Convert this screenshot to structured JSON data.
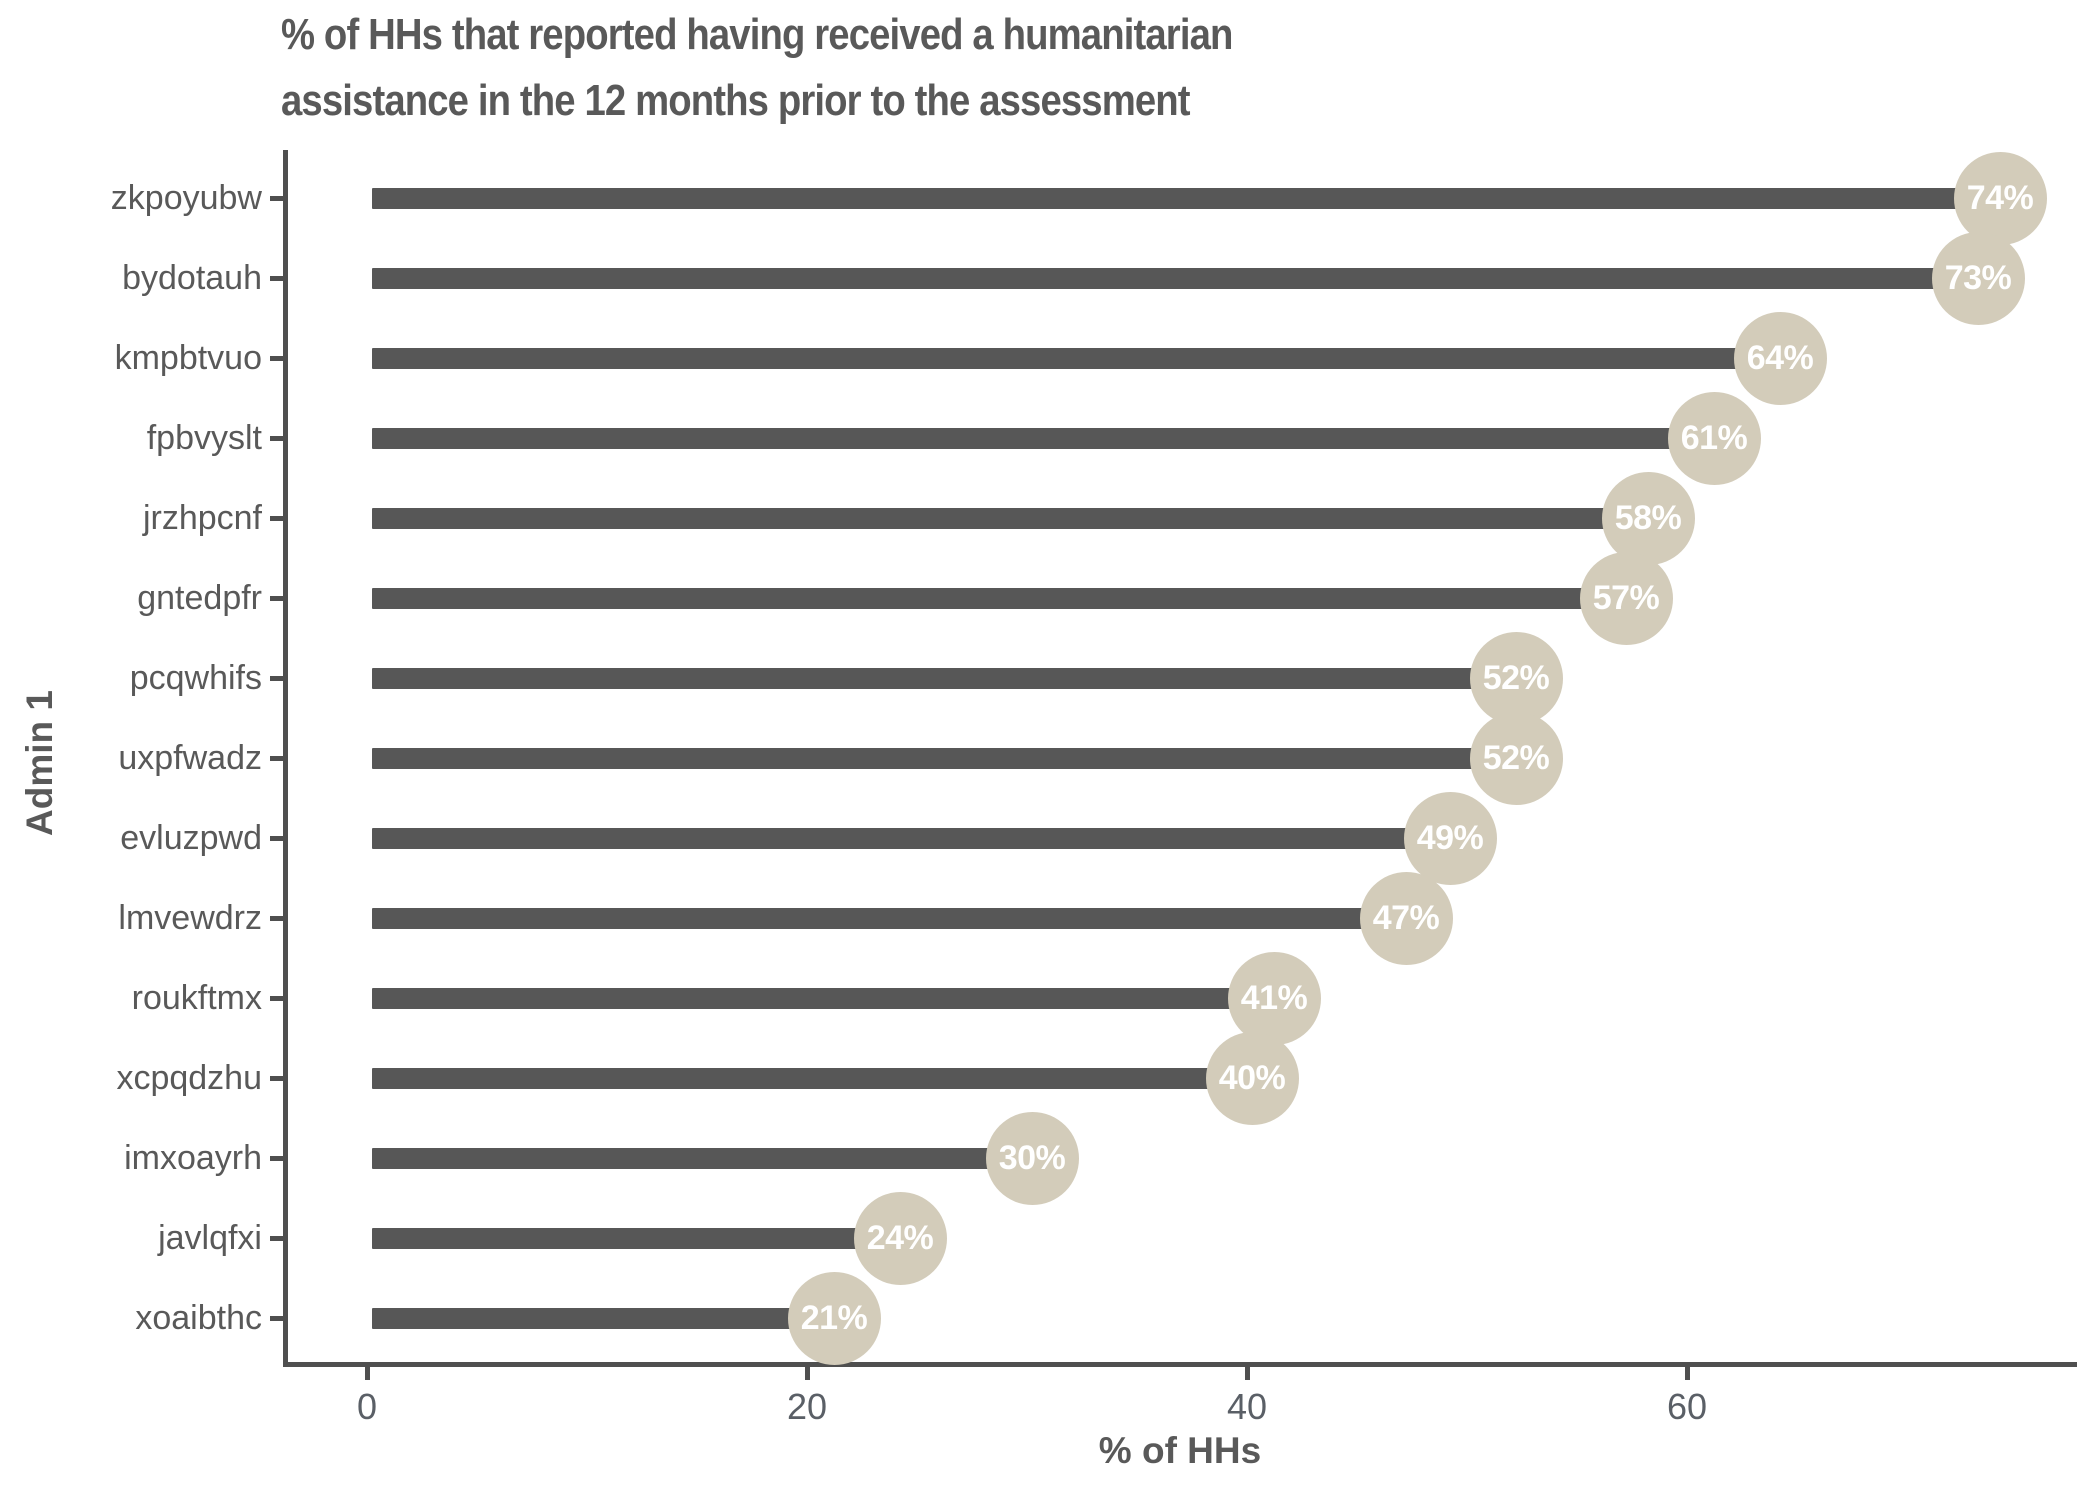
{
  "title": {
    "lines": [
      "% of HHs that reported having received a humanitarian",
      "assistance in the 12 months prior to the assessment"
    ]
  },
  "chart_data": {
    "type": "bar",
    "orientation": "horizontal",
    "title": "% of HHs that reported having received a humanitarian assistance in the 12 months prior to the assessment",
    "xlabel": "% of HHs",
    "ylabel": "Admin 1",
    "categories": [
      "zkpoyubw",
      "bydotauh",
      "kmpbtvuo",
      "fpbvyslt",
      "jrzhpcnf",
      "gntedpfr",
      "pcqwhifs",
      "uxpfwadz",
      "evluzpwd",
      "lmvewdrz",
      "roukftmx",
      "xcpqdzhu",
      "imxoayrh",
      "javlqfxi",
      "xoaibthc"
    ],
    "values": [
      74,
      73,
      64,
      61,
      58,
      57,
      52,
      52,
      49,
      47,
      41,
      40,
      30,
      24,
      21
    ],
    "bar_labels": [
      "74%",
      "73%",
      "64%",
      "61%",
      "58%",
      "57%",
      "52%",
      "52%",
      "49%",
      "47%",
      "41%",
      "40%",
      "30%",
      "24%",
      "21%"
    ],
    "x_ticks": [
      0,
      20,
      40,
      60
    ],
    "x_tick_labels": [
      "0",
      "20",
      "40",
      "60"
    ],
    "xlim": [
      0,
      77.7
    ],
    "grid": "off",
    "legend": "none",
    "colors": {
      "bar": "#575757",
      "bubble": "#d3ccba",
      "bubble_text": "#ffffff",
      "text": "#595959",
      "axis": "#4f4f4f",
      "background": "#ffffff"
    }
  }
}
